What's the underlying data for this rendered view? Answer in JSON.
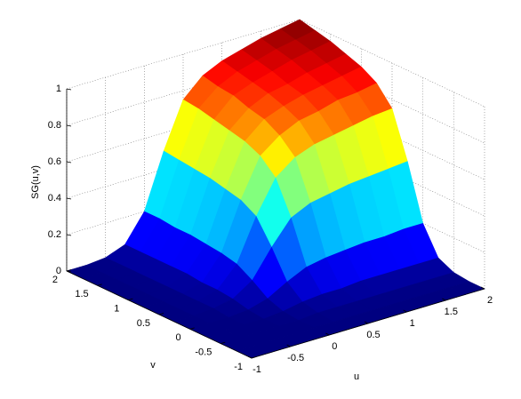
{
  "chart_data": {
    "type": "surface",
    "xlabel": "u",
    "ylabel": "v",
    "zlabel": "SG(u,v)",
    "colormap": "jet",
    "grid": true,
    "x": [
      -1,
      -0.75,
      -0.5,
      -0.25,
      0,
      0.25,
      0.5,
      0.75,
      1,
      1.25,
      1.5,
      1.75,
      2
    ],
    "y": [
      -1,
      -0.75,
      -0.5,
      -0.25,
      0,
      0.25,
      0.5,
      0.75,
      1,
      1.25,
      1.5,
      1.75,
      2
    ],
    "z": [
      [
        0,
        0,
        0,
        0,
        0,
        0,
        0,
        0,
        0,
        0,
        0,
        0,
        0
      ],
      [
        0,
        0,
        0,
        0,
        0,
        0,
        0,
        0,
        0,
        0,
        0,
        0,
        0
      ],
      [
        0,
        0,
        0,
        0,
        0,
        0.01,
        0.01,
        0.01,
        0.01,
        0.01,
        0.01,
        0.01,
        0.01
      ],
      [
        0,
        0,
        0,
        0,
        0.01,
        0.03,
        0.04,
        0.04,
        0.05,
        0.05,
        0.05,
        0.05,
        0.05
      ],
      [
        0,
        0,
        0,
        0.01,
        0.04,
        0.1,
        0.15,
        0.17,
        0.18,
        0.19,
        0.19,
        0.2,
        0.2
      ],
      [
        0,
        0,
        0.01,
        0.03,
        0.1,
        0.25,
        0.38,
        0.43,
        0.45,
        0.47,
        0.48,
        0.49,
        0.5
      ],
      [
        0,
        0,
        0.01,
        0.04,
        0.15,
        0.38,
        0.56,
        0.64,
        0.68,
        0.7,
        0.72,
        0.74,
        0.75
      ],
      [
        0,
        0,
        0.01,
        0.04,
        0.17,
        0.43,
        0.64,
        0.72,
        0.77,
        0.79,
        0.82,
        0.83,
        0.85
      ],
      [
        0,
        0,
        0.01,
        0.05,
        0.18,
        0.45,
        0.68,
        0.77,
        0.81,
        0.84,
        0.86,
        0.88,
        0.9
      ],
      [
        0,
        0,
        0.01,
        0.05,
        0.19,
        0.47,
        0.7,
        0.79,
        0.84,
        0.86,
        0.89,
        0.91,
        0.93
      ],
      [
        0,
        0,
        0.01,
        0.05,
        0.19,
        0.48,
        0.72,
        0.82,
        0.86,
        0.89,
        0.92,
        0.94,
        0.96
      ],
      [
        0,
        0,
        0.01,
        0.05,
        0.2,
        0.49,
        0.74,
        0.83,
        0.88,
        0.91,
        0.94,
        0.96,
        0.98
      ],
      [
        0,
        0,
        0.01,
        0.05,
        0.2,
        0.5,
        0.75,
        0.85,
        0.9,
        0.93,
        0.96,
        0.98,
        1
      ]
    ],
    "xlim": [
      -1,
      2
    ],
    "ylim": [
      -1,
      2
    ],
    "zlim": [
      0,
      1
    ],
    "xticks": [
      -1,
      -0.5,
      0,
      0.5,
      1,
      1.5,
      2
    ],
    "yticks": [
      -1,
      -0.5,
      0,
      0.5,
      1,
      1.5,
      2
    ],
    "zticks": [
      0,
      0.2,
      0.4,
      0.6,
      0.8,
      1
    ]
  }
}
